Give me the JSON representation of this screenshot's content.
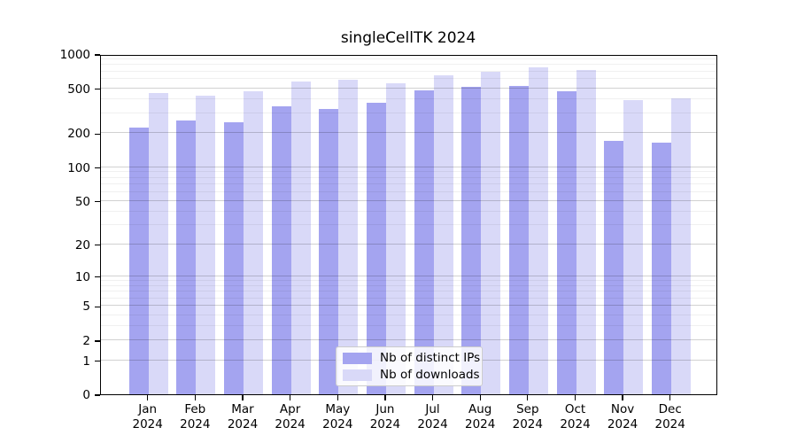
{
  "title": "singleCellTK 2024",
  "colors": {
    "ips_bar": "#a4a4f0",
    "downloads_bar": "#d9d9f8",
    "grid_major": "rgba(0,0,0,0.18)",
    "grid_minor": "rgba(0,0,0,0.06)",
    "axis": "#000000"
  },
  "legend": {
    "items": [
      {
        "label": "Nb of distinct IPs",
        "color_key": "ips_bar"
      },
      {
        "label": "Nb of downloads",
        "color_key": "downloads_bar"
      }
    ]
  },
  "chart_data": {
    "type": "bar",
    "title": "singleCellTK 2024",
    "scale": "log1p",
    "categories": [
      "Jan",
      "Feb",
      "Mar",
      "Apr",
      "May",
      "Jun",
      "Jul",
      "Aug",
      "Sep",
      "Oct",
      "Nov",
      "Dec"
    ],
    "year": "2024",
    "series": [
      {
        "name": "Nb of distinct IPs",
        "values": [
          225,
          257,
          250,
          343,
          328,
          369,
          479,
          512,
          523,
          468,
          171,
          166
        ]
      },
      {
        "name": "Nb of downloads",
        "values": [
          455,
          433,
          466,
          574,
          591,
          550,
          647,
          700,
          758,
          723,
          394,
          403
        ]
      }
    ],
    "xlabel": "",
    "ylabel": "",
    "ylim": [
      0,
      1000
    ],
    "y_ticks": [
      0,
      1,
      2,
      5,
      10,
      20,
      50,
      100,
      200,
      500,
      1000
    ],
    "y_minor_ticks": [
      3,
      4,
      6,
      7,
      8,
      9,
      30,
      40,
      60,
      70,
      80,
      90,
      300,
      400,
      600,
      700,
      800,
      900
    ],
    "grid": true,
    "legend_position": "inside-bottom-center"
  }
}
